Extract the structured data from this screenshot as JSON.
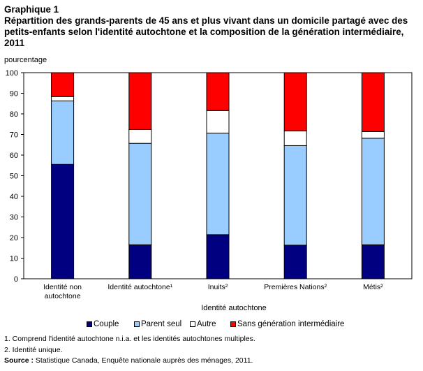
{
  "chart_data": {
    "type": "bar",
    "stacked": true,
    "title": "Graphique 1",
    "subtitle": "Répartition des grands-parents de 45 ans et plus vivant dans un domicile partagé avec des petits-enfants selon l'identité autochtone et la composition de la génération intermédiaire, 2011",
    "ylabel": "pourcentage",
    "xlabel": "Identité autochtone",
    "ylim": [
      0,
      100
    ],
    "yticks": [
      0,
      10,
      20,
      30,
      40,
      50,
      60,
      70,
      80,
      90,
      100
    ],
    "grid": false,
    "legend_position": "bottom",
    "categories": [
      "Identité non autochtone",
      "Identité autochtone¹",
      "Inuits²",
      "Premières Nations²",
      "Métis²"
    ],
    "series": [
      {
        "name": "Couple",
        "color": "#000080",
        "values": [
          55.5,
          16.5,
          21.4,
          16.3,
          16.5
        ]
      },
      {
        "name": "Parent seul",
        "color": "#99ccff",
        "values": [
          30.8,
          49.2,
          49.3,
          48.3,
          51.7
        ]
      },
      {
        "name": "Autre",
        "color": "#ffffff",
        "values": [
          2.1,
          6.7,
          10.9,
          7.2,
          3.2
        ]
      },
      {
        "name": "Sans génération intermédiaire",
        "color": "#ff0000",
        "values": [
          11.6,
          27.6,
          18.4,
          28.2,
          28.6
        ]
      }
    ]
  },
  "notes": {
    "note1": "1. Comprend l'identité autochtone n.i.a. et les identités autochtones multiples.",
    "note2": "2. Identité unique.",
    "source_label": "Source :",
    "source_text": " Statistique Canada, Enquête nationale auprès des ménages, 2011."
  }
}
